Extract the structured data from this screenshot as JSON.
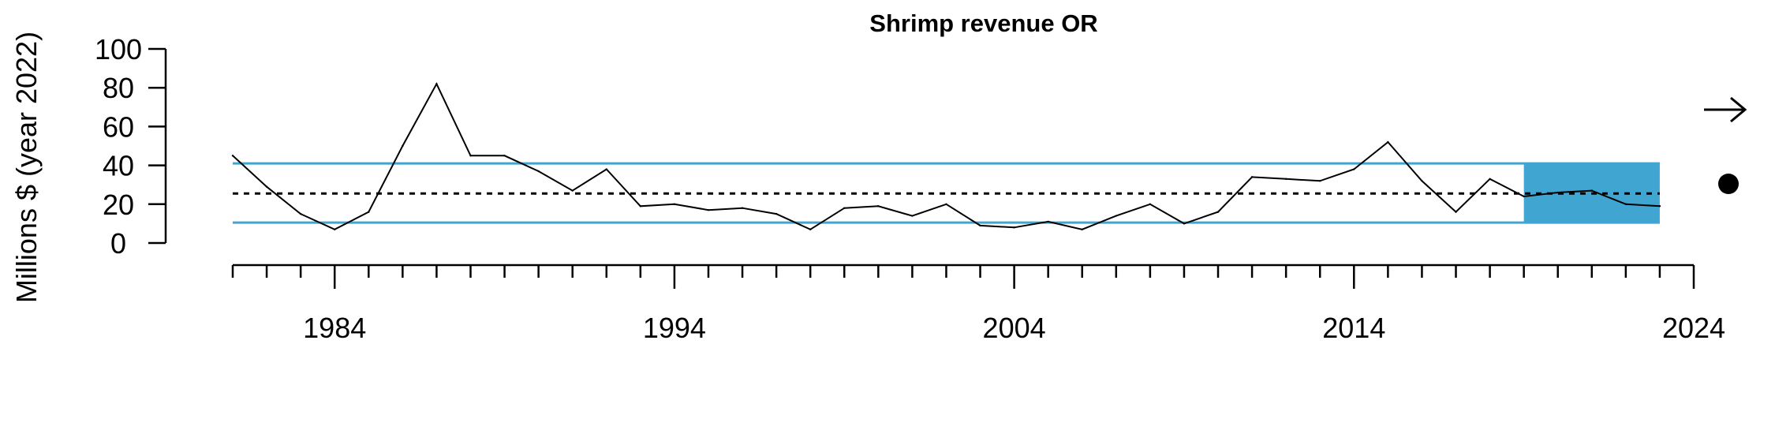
{
  "chart_data": {
    "type": "line",
    "title": "Shrimp revenue OR",
    "xlabel": "",
    "ylabel": "Millions $ (year 2022)",
    "xlim": [
      1981,
      2024
    ],
    "ylim": [
      0,
      100
    ],
    "x_ticks": [
      1984,
      1994,
      2004,
      2014,
      2024
    ],
    "y_ticks": [
      0,
      20,
      40,
      60,
      80,
      100
    ],
    "x_minor_tick_step": 1,
    "series": [
      {
        "x": [
          1981,
          1982,
          1983,
          1984,
          1985,
          1986,
          1987,
          1988,
          1989,
          1990,
          1991,
          1992,
          1993,
          1994,
          1995,
          1996,
          1997,
          1998,
          1999,
          2000,
          2001,
          2002,
          2003,
          2004,
          2005,
          2006,
          2007,
          2008,
          2009,
          2010,
          2011,
          2012,
          2013,
          2014,
          2015,
          2016,
          2017,
          2018,
          2019,
          2020,
          2021,
          2022,
          2023
        ],
        "values": [
          45,
          29,
          15,
          7,
          16,
          50,
          82,
          45,
          45,
          37,
          27,
          38,
          19,
          20,
          17,
          18,
          15,
          7,
          18,
          19,
          14,
          20,
          9,
          8,
          11,
          7,
          14,
          20,
          10,
          16,
          34,
          33,
          32,
          38,
          52,
          32,
          16,
          33,
          24,
          26,
          27,
          20,
          19
        ]
      }
    ],
    "reference_lines": {
      "mean": 25.5,
      "upper": 41,
      "lower": 10.5,
      "color": "#41a5d2"
    },
    "highlight_period": {
      "x_start": 2019,
      "x_end": 2023,
      "color": "#41a5d2"
    },
    "trend_symbols": {
      "trend": "right-arrow",
      "mean_status": "filled-circle"
    },
    "grid": false
  }
}
